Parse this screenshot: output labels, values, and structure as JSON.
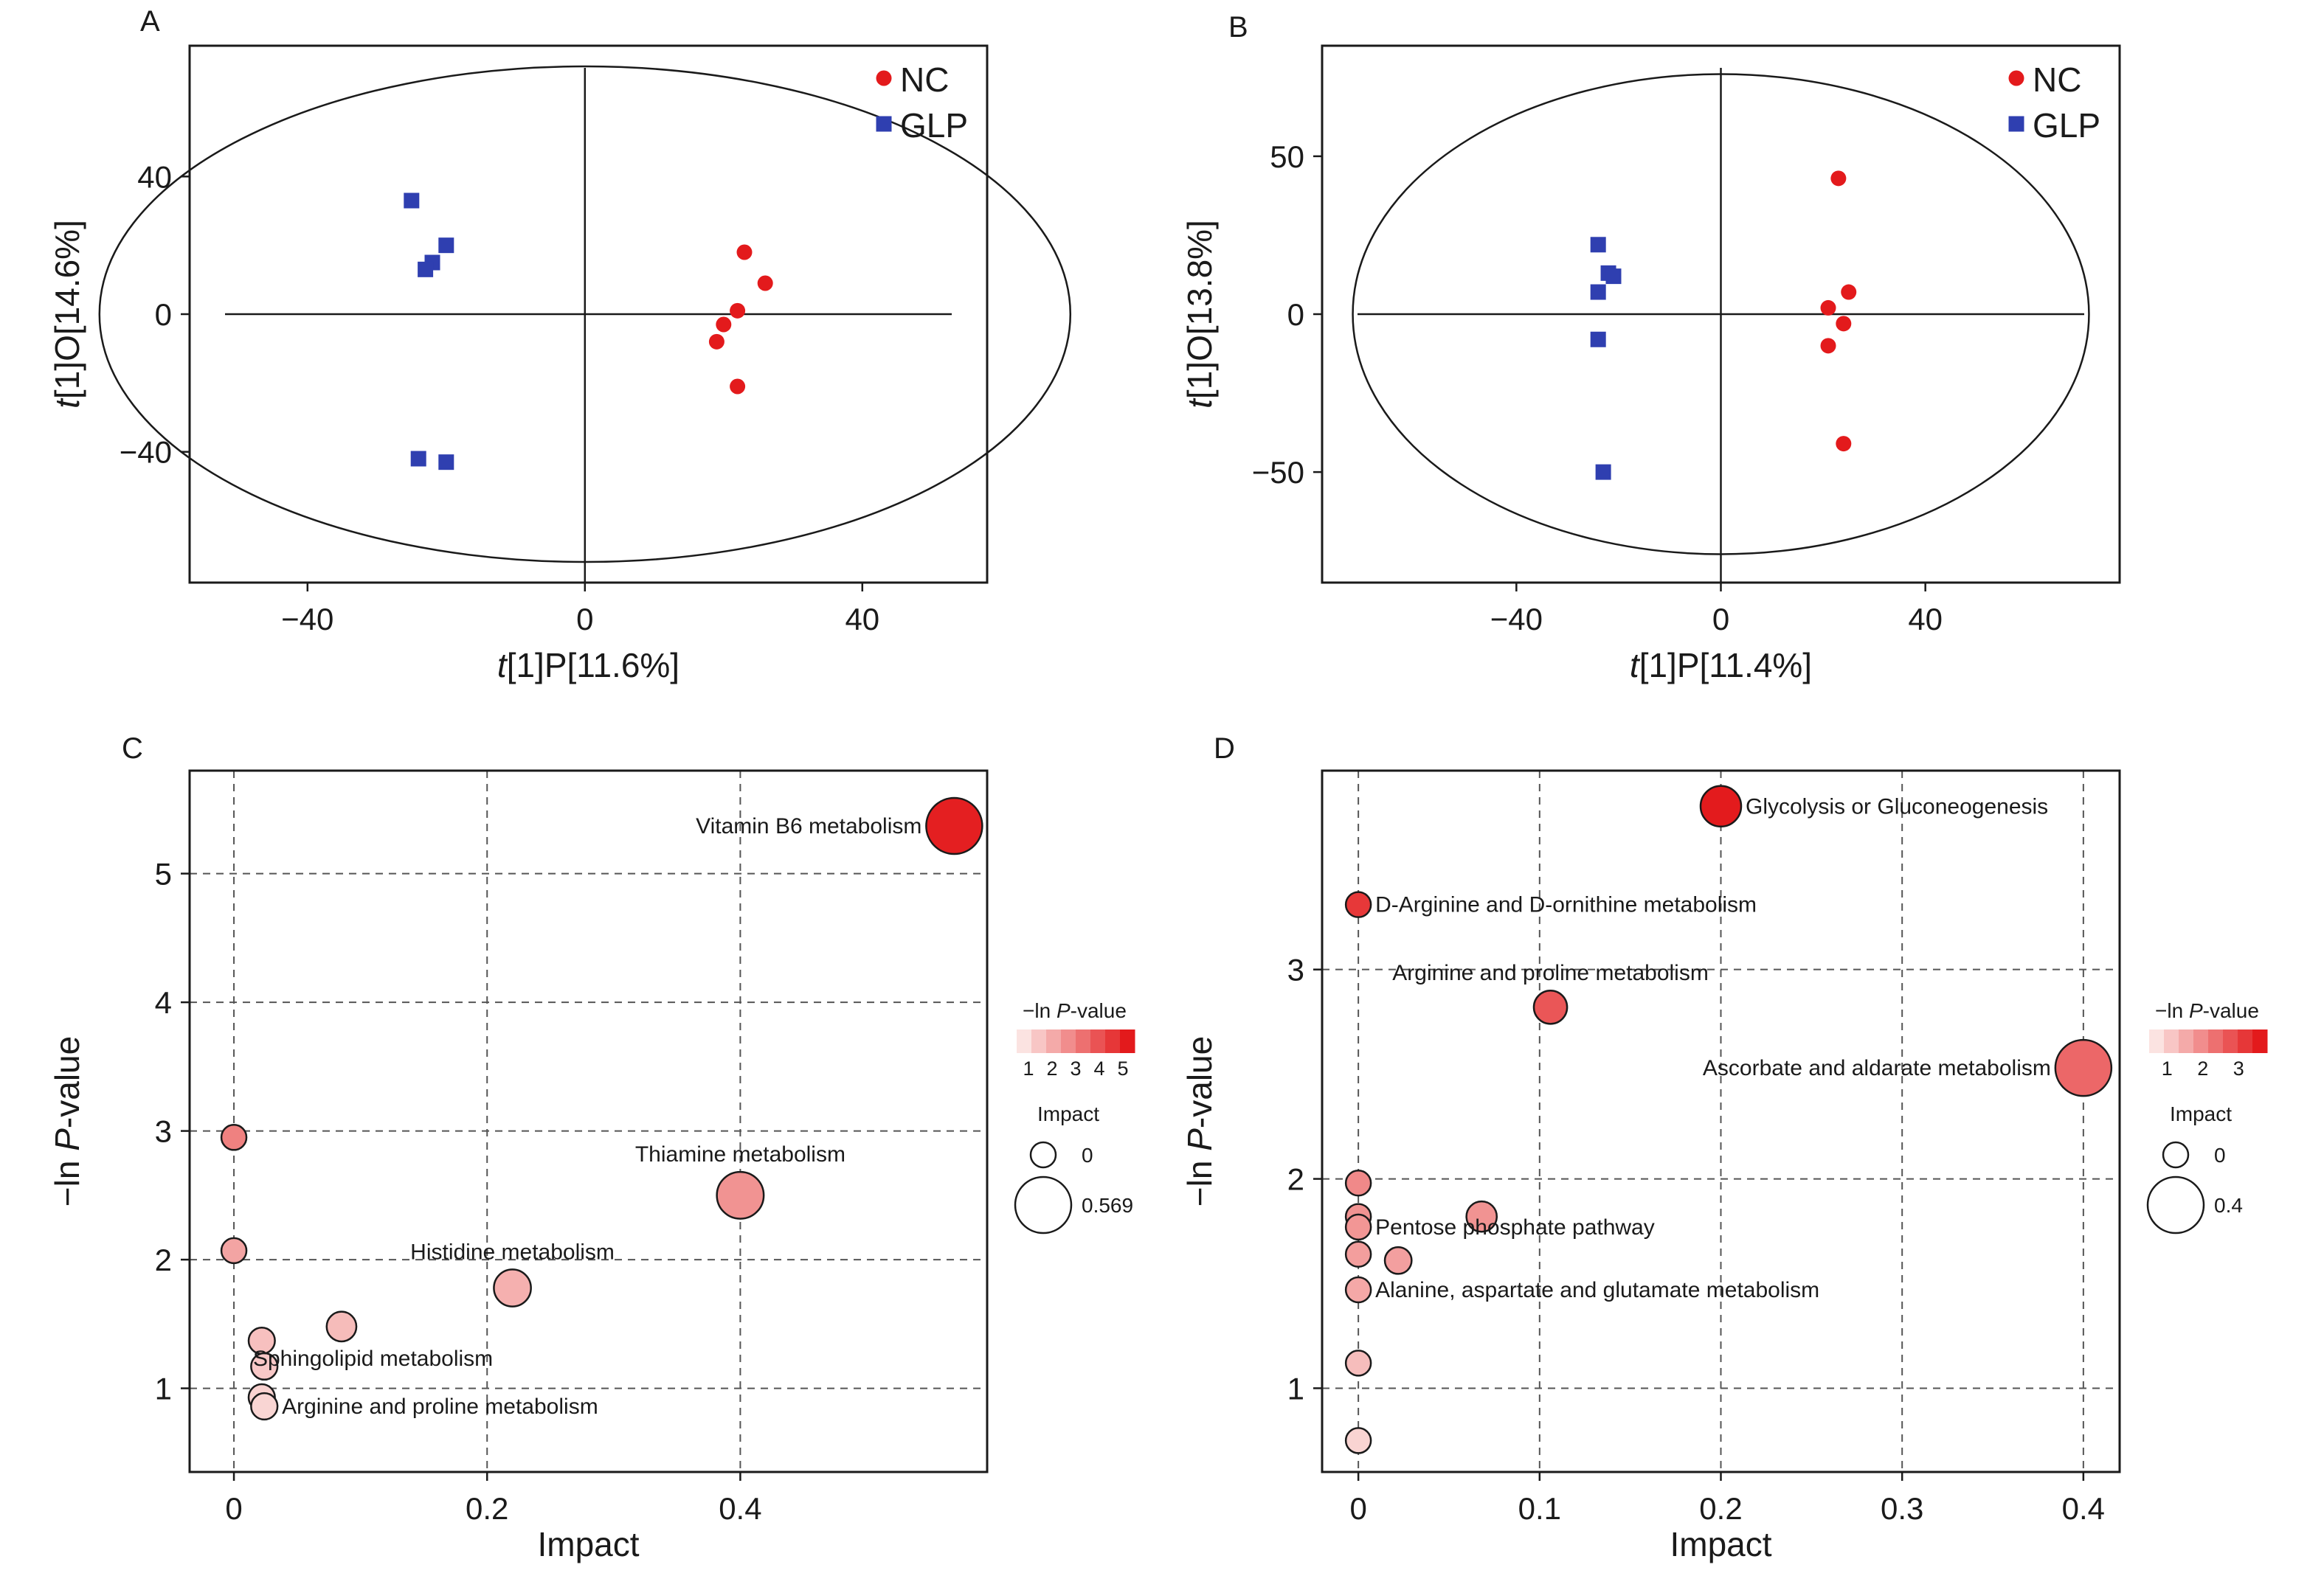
{
  "figure": {
    "panels": {
      "A": {
        "letter": "A"
      },
      "B": {
        "letter": "B"
      },
      "C": {
        "letter": "C"
      },
      "D": {
        "letter": "D"
      }
    }
  },
  "chart_data": [
    {
      "id": "A",
      "type": "scatter",
      "xlabel_italic": "t",
      "xlabel_rest": "[1]P[11.6%]",
      "ylabel_italic": "t",
      "ylabel_rest": "[1]O[14.6%]",
      "xlim": [
        -57,
        58
      ],
      "ylim": [
        -78,
        78
      ],
      "xticks": [
        -40,
        0,
        40
      ],
      "yticks": [
        -40,
        0,
        40
      ],
      "xtick_labels": [
        "−40",
        "0",
        "40"
      ],
      "ytick_labels": [
        "−40",
        "0",
        "40"
      ],
      "ellipse": {
        "rx": 70,
        "ry": 72
      },
      "legend_position": "top-right",
      "series": [
        {
          "name": "NC",
          "color": "#e31a1c",
          "marker": "circle",
          "points": [
            [
              23,
              18
            ],
            [
              26,
              9
            ],
            [
              22,
              1
            ],
            [
              20,
              -3
            ],
            [
              19,
              -8
            ],
            [
              22,
              -21
            ]
          ]
        },
        {
          "name": "GLP",
          "color": "#2f3fb0",
          "marker": "square",
          "points": [
            [
              -25,
              33
            ],
            [
              -20,
              20
            ],
            [
              -22,
              15
            ],
            [
              -23,
              13
            ],
            [
              -24,
              -42
            ],
            [
              -20,
              -43
            ]
          ]
        }
      ]
    },
    {
      "id": "B",
      "type": "scatter",
      "xlabel_italic": "t",
      "xlabel_rest": "[1]P[11.4%]",
      "ylabel_italic": "t",
      "ylabel_rest": "[1]O[13.8%]",
      "xlim": [
        -78,
        78
      ],
      "ylim": [
        -85,
        85
      ],
      "xticks": [
        -40,
        0,
        40
      ],
      "yticks": [
        -50,
        0,
        50
      ],
      "xtick_labels": [
        "−40",
        "0",
        "40"
      ],
      "ytick_labels": [
        "−50",
        "0",
        "50"
      ],
      "ellipse": {
        "rx": 72,
        "ry": 76
      },
      "legend_position": "top-right",
      "series": [
        {
          "name": "NC",
          "color": "#e31a1c",
          "marker": "circle",
          "points": [
            [
              23,
              43
            ],
            [
              25,
              7
            ],
            [
              21,
              2
            ],
            [
              24,
              -3
            ],
            [
              21,
              -10
            ],
            [
              24,
              -41
            ]
          ]
        },
        {
          "name": "GLP",
          "color": "#2f3fb0",
          "marker": "square",
          "points": [
            [
              -24,
              22
            ],
            [
              -22,
              13
            ],
            [
              -21,
              12
            ],
            [
              -24,
              7
            ],
            [
              -24,
              -8
            ],
            [
              -23,
              -50
            ]
          ]
        }
      ]
    },
    {
      "id": "C",
      "type": "scatter",
      "subtype": "bubble",
      "xlabel": "Impact",
      "ylabel_prefix": "−ln ",
      "ylabel_italic": "P",
      "ylabel_suffix": "-value",
      "xlim": [
        -0.035,
        0.595
      ],
      "ylim": [
        0.35,
        5.8
      ],
      "xticks": [
        0,
        0.2,
        0.4
      ],
      "yticks": [
        1,
        2,
        3,
        4,
        5
      ],
      "xtick_labels": [
        "0",
        "0.2",
        "0.4"
      ],
      "ytick_labels": [
        "1",
        "2",
        "3",
        "4",
        "5"
      ],
      "grid": true,
      "points": [
        {
          "impact": 0.569,
          "neglogp": 5.37,
          "label": "Vitamin B6 metabolism",
          "label_side": "left"
        },
        {
          "impact": 0.4,
          "neglogp": 2.5,
          "label": "Thiamine metabolism",
          "label_side": "above"
        },
        {
          "impact": 0.22,
          "neglogp": 1.78,
          "label": "Histidine metabolism",
          "label_side": "above"
        },
        {
          "impact": 0.0,
          "neglogp": 2.95,
          "label": ""
        },
        {
          "impact": 0.0,
          "neglogp": 2.07,
          "label": ""
        },
        {
          "impact": 0.085,
          "neglogp": 1.48,
          "label": ""
        },
        {
          "impact": 0.022,
          "neglogp": 1.37,
          "label": "Sphingolipid metabolism",
          "label_side": "below"
        },
        {
          "impact": 0.024,
          "neglogp": 1.17,
          "label": ""
        },
        {
          "impact": 0.022,
          "neglogp": 0.93,
          "label": ""
        },
        {
          "impact": 0.024,
          "neglogp": 0.86,
          "label": "Arginine and proline metabolism",
          "label_side": "right"
        }
      ],
      "colorbar": {
        "title_prefix": "−ln ",
        "title_italic": "P",
        "title_suffix": "-value",
        "ticks": [
          "1",
          "2",
          "3",
          "4",
          "5"
        ],
        "min": 0.5,
        "max": 5.5,
        "low_color": "#fbe3e1",
        "high_color": "#e31a1c"
      },
      "size_legend": {
        "title": "Impact",
        "items": [
          {
            "label": "0",
            "value": 0
          },
          {
            "label": "0.569",
            "value": 0.569
          }
        ]
      }
    },
    {
      "id": "D",
      "type": "scatter",
      "subtype": "bubble",
      "xlabel": "Impact",
      "ylabel_prefix": "−ln ",
      "ylabel_italic": "P",
      "ylabel_suffix": "-value",
      "xlim": [
        -0.02,
        0.42
      ],
      "ylim": [
        0.6,
        3.95
      ],
      "xticks": [
        0,
        0.1,
        0.2,
        0.3,
        0.4
      ],
      "yticks": [
        1,
        2,
        3
      ],
      "xtick_labels": [
        "0",
        "0.1",
        "0.2",
        "0.3",
        "0.4"
      ],
      "ytick_labels": [
        "1",
        "2",
        "3"
      ],
      "grid": true,
      "points": [
        {
          "impact": 0.2,
          "neglogp": 3.78,
          "label": "Glycolysis or Gluconeogenesis",
          "label_side": "right"
        },
        {
          "impact": 0.0,
          "neglogp": 3.31,
          "label": "D-Arginine and D-ornithine metabolism",
          "label_side": "right"
        },
        {
          "impact": 0.106,
          "neglogp": 2.82,
          "label": "Arginine and proline metabolism",
          "label_side": "above"
        },
        {
          "impact": 0.4,
          "neglogp": 2.53,
          "label": "Ascorbate and aldarate metabolism",
          "label_side": "left"
        },
        {
          "impact": 0.0,
          "neglogp": 1.98,
          "label": ""
        },
        {
          "impact": 0.068,
          "neglogp": 1.82,
          "label": ""
        },
        {
          "impact": 0.0,
          "neglogp": 1.82,
          "label": ""
        },
        {
          "impact": 0.0,
          "neglogp": 1.77,
          "label": "Pentose phosphate pathway",
          "label_side": "right"
        },
        {
          "impact": 0.0,
          "neglogp": 1.64,
          "label": ""
        },
        {
          "impact": 0.022,
          "neglogp": 1.61,
          "label": ""
        },
        {
          "impact": 0.0,
          "neglogp": 1.47,
          "label": "Alanine, aspartate and glutamate metabolism",
          "label_side": "right"
        },
        {
          "impact": 0.0,
          "neglogp": 1.12,
          "label": ""
        },
        {
          "impact": 0.0,
          "neglogp": 0.75,
          "label": ""
        }
      ],
      "colorbar": {
        "title_prefix": "−ln ",
        "title_italic": "P",
        "title_suffix": "-value",
        "ticks": [
          "1",
          "2",
          "3"
        ],
        "min": 0.5,
        "max": 3.8,
        "low_color": "#fbe3e1",
        "high_color": "#e31a1c"
      },
      "size_legend": {
        "title": "Impact",
        "items": [
          {
            "label": "0",
            "value": 0
          },
          {
            "label": "0.4",
            "value": 0.4
          }
        ]
      }
    }
  ]
}
